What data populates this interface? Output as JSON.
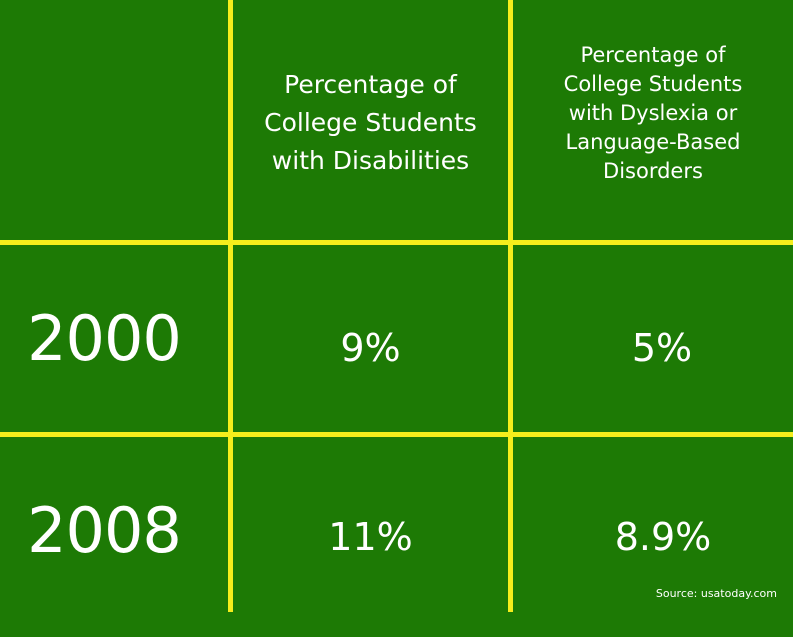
{
  "chart_data": {
    "type": "table",
    "columns": [
      "",
      "Percentage of College Students with Disabilities",
      "Percentage of College Students with Dyslexia or Language-Based Disorders"
    ],
    "header_lines": {
      "col2": [
        "Percentage of",
        "College Students",
        "with Disabilities"
      ],
      "col3": [
        "Percentage of",
        "College Students",
        "with Dyslexia or",
        "Language-Based",
        "Disorders"
      ]
    },
    "rows": [
      {
        "year": "2000",
        "disabilities": "9%",
        "dyslexia": "5%"
      },
      {
        "year": "2008",
        "disabilities": "11%",
        "dyslexia": "8.9%"
      }
    ],
    "values": {
      "2000": {
        "disabilities": 9,
        "dyslexia": 5
      },
      "2008": {
        "disabilities": 11,
        "dyslexia": 8.9
      }
    },
    "source": "Source: usatoday.com"
  },
  "colors": {
    "background": "#1d7a05",
    "grid_lines": "#f5ee1c",
    "text": "#ffffff"
  }
}
